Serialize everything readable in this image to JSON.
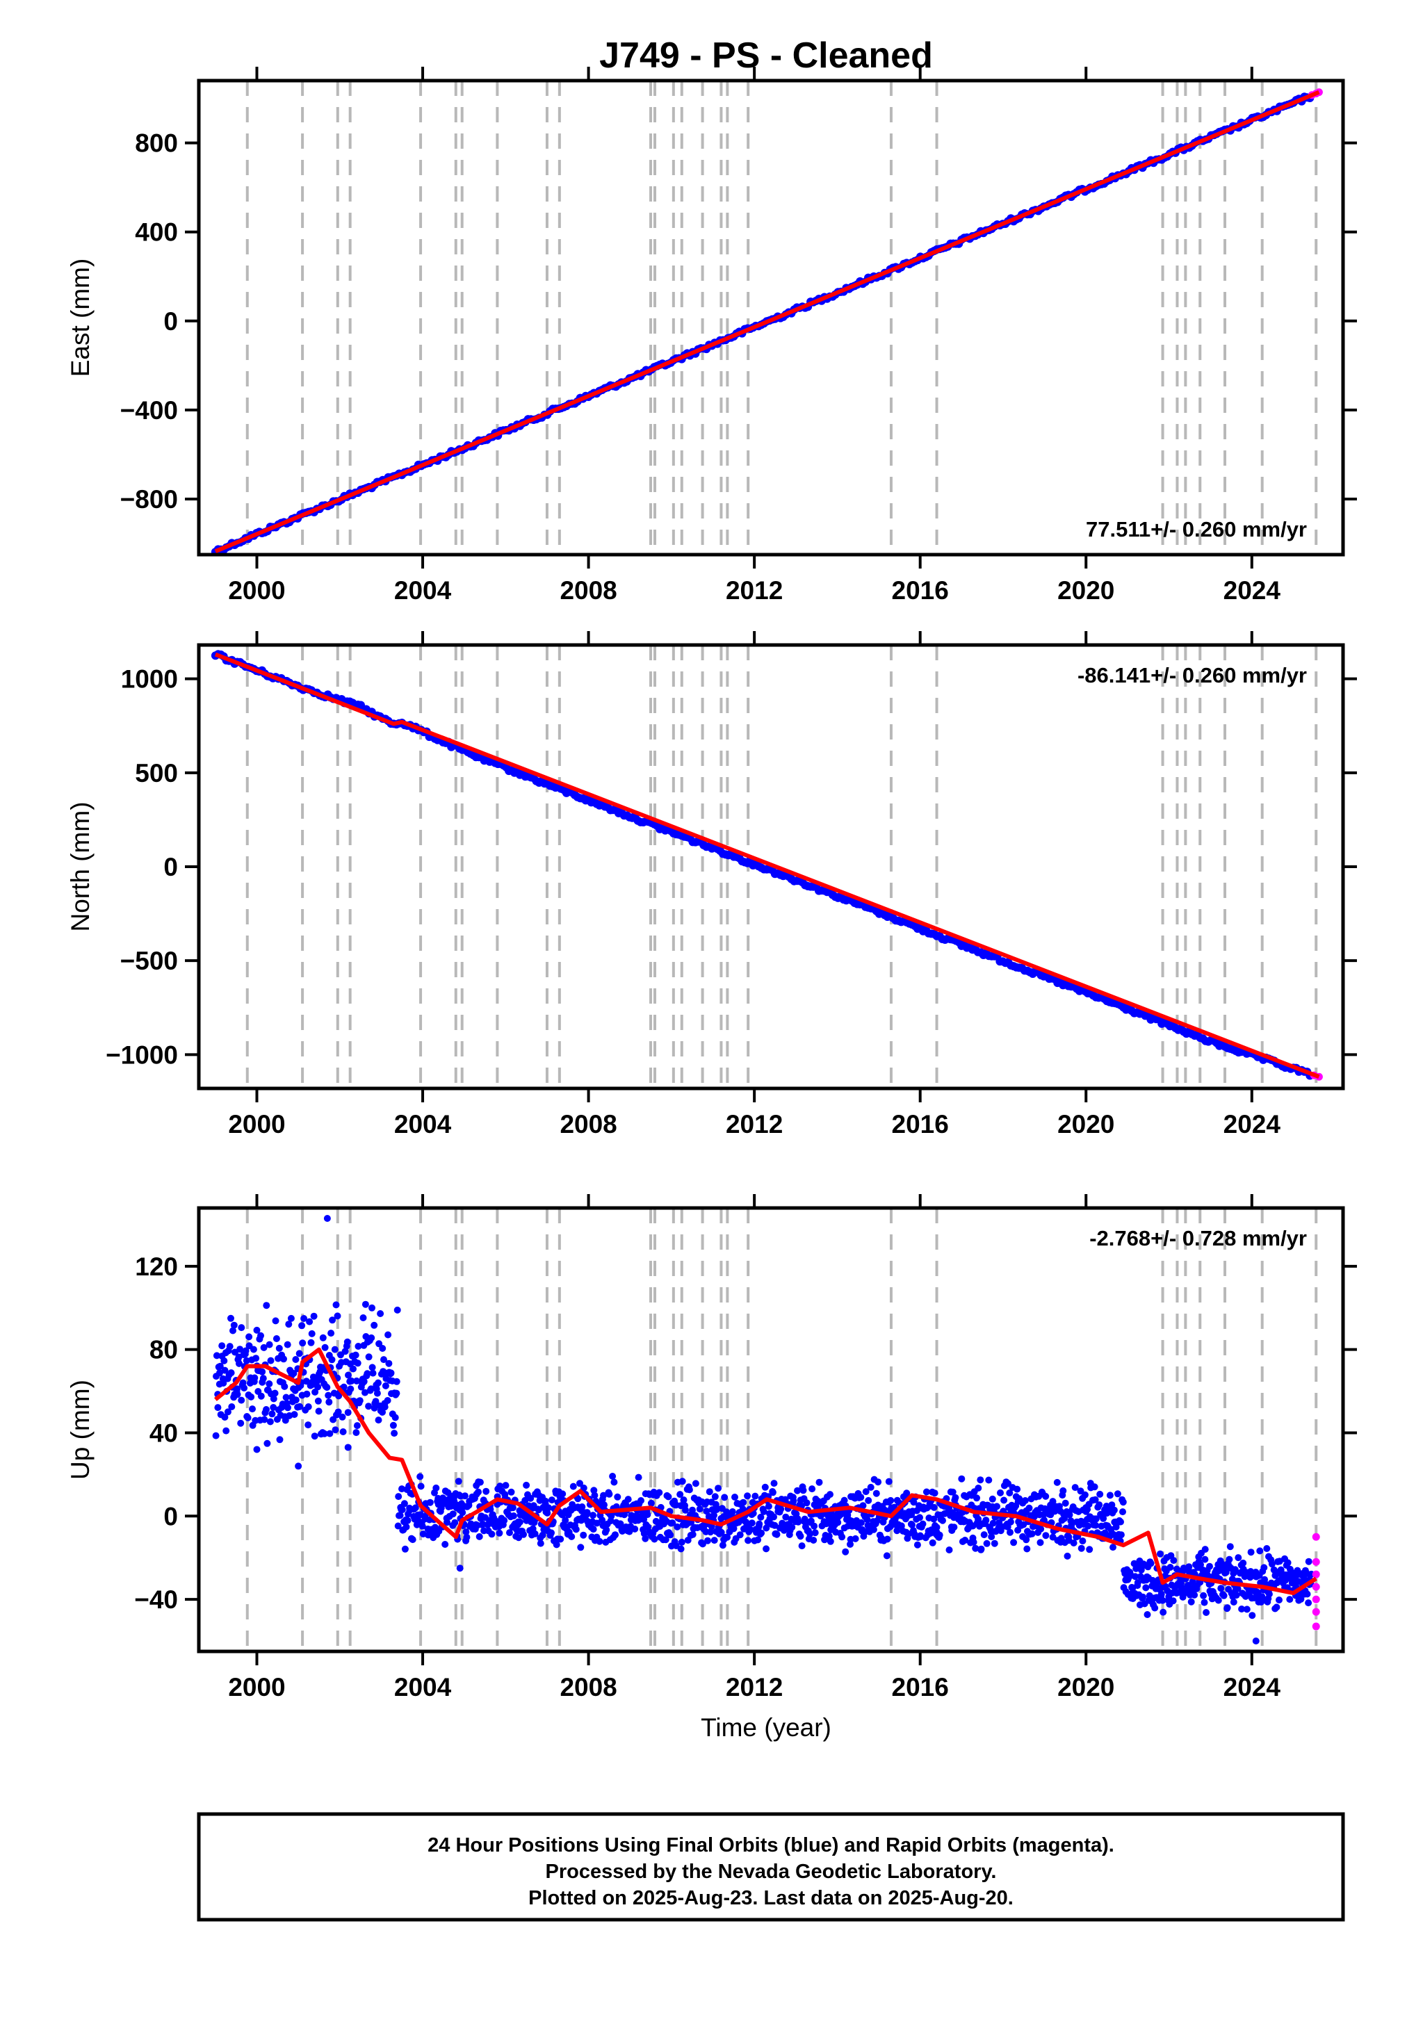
{
  "chart_data": {
    "type": "scatter",
    "title": "J749  - PS - Cleaned",
    "xlabel": "Time (year)",
    "x_ticks": [
      "2000",
      "2004",
      "2008",
      "2012",
      "2016",
      "2020",
      "2024"
    ],
    "xlim": [
      1998.6,
      2026.2
    ],
    "equipment_change_lines": [
      1999.77,
      2001.1,
      2001.95,
      2002.25,
      2003.95,
      2004.8,
      2004.95,
      2005.8,
      2007.0,
      2007.3,
      2009.5,
      2009.6,
      2010.05,
      2010.25,
      2010.75,
      2011.2,
      2011.35,
      2011.85,
      2015.3,
      2016.4,
      2021.85,
      2022.2,
      2022.4,
      2022.75,
      2023.35,
      2024.25,
      2025.55
    ],
    "colors": {
      "final_orbits": "#0000ff",
      "rapid_orbits": "#ff00ff",
      "model_fit": "#ff0000",
      "equipment_lines": "#b8b8b8"
    },
    "panels": [
      {
        "ylabel": "East (mm)",
        "ylim": [
          -1050,
          1080
        ],
        "y_ticks": [
          -800,
          -400,
          0,
          400,
          800
        ],
        "y_tick_labels": [
          "−800",
          "−400",
          "0",
          "400",
          "800"
        ],
        "rate_label": "77.511+/- 0.260 mm/yr",
        "rate_position": "bottom-right",
        "series": [
          {
            "kind": "final_orbits",
            "x": [
              1999.0,
              2001.0,
              2003.0,
              2005.0,
              2007.0,
              2009.0,
              2011.0,
              2013.0,
              2015.0,
              2017.0,
              2019.0,
              2021.0,
              2023.0,
              2025.4
            ],
            "y": [
              -1035,
              -880,
              -725,
              -570,
              -415,
              -260,
              -105,
              50,
              205,
              360,
              515,
              670,
              825,
              1010
            ]
          },
          {
            "kind": "rapid_orbits",
            "x": [
              2025.45,
              2025.55,
              2025.62
            ],
            "y": [
              1015,
              1022,
              1028
            ]
          },
          {
            "kind": "model_fit",
            "x": [
              1999.0,
              2025.62
            ],
            "y": [
              -1035,
              1028
            ]
          }
        ]
      },
      {
        "ylabel": "North (mm)",
        "ylim": [
          -1180,
          1180
        ],
        "y_ticks": [
          -1000,
          -500,
          0,
          500,
          1000
        ],
        "y_tick_labels": [
          "−1000",
          "−500",
          "0",
          "500",
          "1000"
        ],
        "rate_label": "-86.141+/- 0.260 mm/yr",
        "rate_position": "top-right",
        "series": [
          {
            "kind": "final_orbits",
            "x": [
              1999.0,
              2001.0,
              2002.5,
              2003.0,
              2003.3,
              2003.5,
              2005.0,
              2007.0,
              2009.0,
              2011.0,
              2013.0,
              2015.0,
              2017.0,
              2019.0,
              2021.0,
              2023.0,
              2025.4
            ],
            "y": [
              1130,
              960,
              850,
              790,
              760,
              770,
              615,
              440,
              270,
              100,
              -70,
              -240,
              -415,
              -585,
              -755,
              -930,
              -1105
            ]
          },
          {
            "kind": "rapid_orbits",
            "x": [
              2025.5,
              2025.62
            ],
            "y": [
              -1110,
              -1118
            ]
          },
          {
            "kind": "model_fit",
            "x": [
              1999.0,
              2003.3,
              2003.5,
              2025.62
            ],
            "y": [
              1130,
              760,
              770,
              -1118
            ]
          }
        ]
      },
      {
        "ylabel": "Up (mm)",
        "ylim": [
          -65,
          148
        ],
        "y_ticks": [
          -40,
          0,
          40,
          80,
          120
        ],
        "y_tick_labels": [
          "−40",
          "0",
          "40",
          "80",
          "120"
        ],
        "rate_label": "-2.768+/- 0.728 mm/yr",
        "rate_position": "top-right",
        "series": [
          {
            "kind": "final_orbits",
            "segments": [
              {
                "x0": 1999.0,
                "x1": 2003.4,
                "ymin": 30,
                "ymax": 112,
                "center": 65
              },
              {
                "x0": 2003.4,
                "x1": 2020.9,
                "ymin": -22,
                "ymax": 22,
                "center": 0
              },
              {
                "x0": 2020.9,
                "x1": 2025.45,
                "ymin": -52,
                "ymax": -12,
                "center": -32
              }
            ],
            "outliers": [
              [
                2001.7,
                143
              ],
              [
                2000.0,
                32
              ],
              [
                2001.0,
                24
              ],
              [
                2002.2,
                33
              ],
              [
                2004.9,
                -25
              ],
              [
                2024.1,
                -60
              ]
            ]
          },
          {
            "kind": "rapid_orbits",
            "x": [
              2025.55,
              2025.55,
              2025.55,
              2025.55,
              2025.55,
              2025.55,
              2025.55
            ],
            "y": [
              -10,
              -22,
              -28,
              -34,
              -40,
              -46,
              -53
            ]
          },
          {
            "kind": "model_fit",
            "x": [
              1999.0,
              1999.5,
              1999.77,
              2000.2,
              2001.0,
              2001.1,
              2001.5,
              2001.95,
              2002.25,
              2002.7,
              2003.2,
              2003.5,
              2003.95,
              2004.4,
              2004.8,
              2004.95,
              2005.3,
              2005.8,
              2006.3,
              2007.0,
              2007.3,
              2007.8,
              2008.3,
              2009.5,
              2010.0,
              2010.75,
              2011.2,
              2011.85,
              2012.3,
              2013.3,
              2014.3,
              2015.3,
              2015.8,
              2016.4,
              2017.3,
              2018.3,
              2019.3,
              2020.3,
              2020.9,
              2021.5,
              2021.85,
              2022.2,
              2022.75,
              2023.35,
              2024.25,
              2025.0,
              2025.55
            ],
            "y": [
              56,
              64,
              72,
              72,
              64,
              74,
              80,
              62,
              55,
              40,
              28,
              27,
              5,
              -3,
              -10,
              -2,
              2,
              8,
              6,
              -4,
              5,
              12,
              2,
              4,
              0,
              -2,
              -4,
              2,
              8,
              2,
              4,
              0,
              10,
              8,
              2,
              0,
              -6,
              -10,
              -14,
              -8,
              -32,
              -28,
              -30,
              -32,
              -34,
              -37,
              -30
            ]
          }
        ]
      }
    ]
  },
  "footer": {
    "line1": "24 Hour Positions Using Final Orbits (blue) and Rapid Orbits (magenta).",
    "line2": "Processed by the Nevada Geodetic Laboratory.",
    "line3": "Plotted on 2025-Aug-23. Last data on 2025-Aug-20."
  }
}
